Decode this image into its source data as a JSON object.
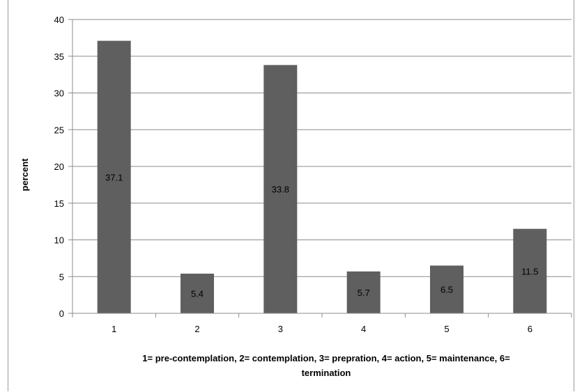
{
  "chart_data": {
    "type": "bar",
    "categories": [
      "1",
      "2",
      "3",
      "4",
      "5",
      "6"
    ],
    "values": [
      37.1,
      5.4,
      33.8,
      5.7,
      6.5,
      11.5
    ],
    "data_labels": [
      "37.1",
      "5.4",
      "33.8",
      "5.7",
      "6.5",
      "11.5"
    ],
    "y_ticks": [
      "0",
      "5",
      "10",
      "15",
      "20",
      "25",
      "30",
      "35",
      "40"
    ],
    "ylim": [
      0,
      40
    ],
    "ylabel": "percent",
    "xlabel": [
      "1= pre-contemplation, 2= contemplation, 3= prepration, 4= action, 5= maintenance, 6=",
      "termination"
    ],
    "grid": true,
    "legend": "none",
    "bar_color": "#5f5f5f"
  }
}
